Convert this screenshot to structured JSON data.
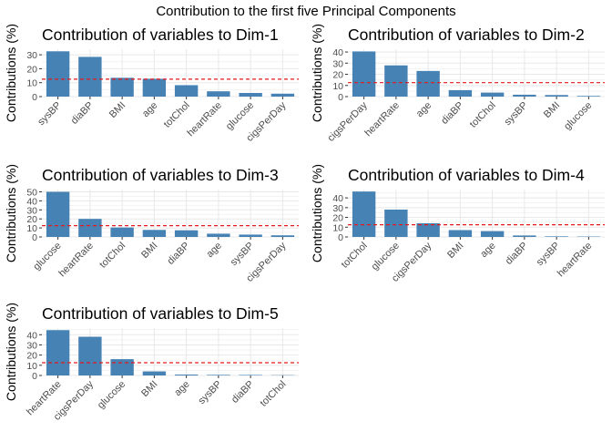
{
  "figure": {
    "title": "Contribution to the first five Principal Components"
  },
  "colors": {
    "bar": "#4682B4",
    "reference_line": "#E41A1C",
    "grid_major": "#e8e8e8",
    "grid_minor": "#f3f3f3",
    "tick_text": "#4d4d4d",
    "tick_mark": "#333333"
  },
  "chart_data": [
    {
      "type": "bar",
      "title": "Contribution of variables to Dim-1",
      "ylabel": "Contributions (%)",
      "xlabel": "",
      "categories": [
        "sysBP",
        "diaBP",
        "BMI",
        "age",
        "totChol",
        "heartRate",
        "glucose",
        "cigsPerDay"
      ],
      "values": [
        32.5,
        28.5,
        13.5,
        12.8,
        8.2,
        3.8,
        2.6,
        2.1
      ],
      "yticks": [
        0,
        10,
        20,
        30
      ],
      "ylim": [
        0,
        34
      ],
      "reference_line": 12.5,
      "grid": true
    },
    {
      "type": "bar",
      "title": "Contribution of variables to Dim-2",
      "ylabel": "Contributions (%)",
      "xlabel": "",
      "categories": [
        "cigsPerDay",
        "heartRate",
        "age",
        "diaBP",
        "totChol",
        "sysBP",
        "BMI",
        "glucose"
      ],
      "values": [
        40.5,
        28.0,
        23.0,
        5.8,
        3.6,
        1.7,
        1.4,
        0.6
      ],
      "yticks": [
        0,
        10,
        20,
        30,
        40
      ],
      "ylim": [
        0,
        42.5
      ],
      "reference_line": 12.5,
      "grid": true
    },
    {
      "type": "bar",
      "title": "Contribution of variables to Dim-3",
      "ylabel": "Contributions (%)",
      "xlabel": "",
      "categories": [
        "glucose",
        "heartRate",
        "totChol",
        "BMI",
        "diaBP",
        "age",
        "sysBP",
        "cigsPerDay"
      ],
      "values": [
        50.0,
        20.0,
        10.5,
        7.8,
        7.4,
        3.6,
        2.6,
        1.8
      ],
      "yticks": [
        0,
        10,
        20,
        30,
        40,
        50
      ],
      "ylim": [
        0,
        52.5
      ],
      "reference_line": 12.5,
      "grid": true
    },
    {
      "type": "bar",
      "title": "Contribution of variables to Dim-4",
      "ylabel": "Contributions (%)",
      "xlabel": "",
      "categories": [
        "totChol",
        "glucose",
        "cigsPerDay",
        "BMI",
        "age",
        "diaBP",
        "sysBP",
        "heartRate"
      ],
      "values": [
        46.5,
        28.0,
        14.0,
        7.0,
        6.0,
        1.5,
        0.6,
        0.4
      ],
      "yticks": [
        0,
        10,
        20,
        30,
        40
      ],
      "ylim": [
        0,
        48.5
      ],
      "reference_line": 12.5,
      "grid": true
    },
    {
      "type": "bar",
      "title": "Contribution of variables to Dim-5",
      "ylabel": "Contributions (%)",
      "xlabel": "",
      "categories": [
        "heartRate",
        "cigsPerDay",
        "glucose",
        "BMI",
        "age",
        "sysBP",
        "diaBP",
        "totChol"
      ],
      "values": [
        44.5,
        38.0,
        16.0,
        4.0,
        0.9,
        0.6,
        0.5,
        0.3
      ],
      "yticks": [
        0,
        10,
        20,
        30,
        40
      ],
      "ylim": [
        0,
        46.5
      ],
      "reference_line": 12.5,
      "grid": true
    }
  ]
}
